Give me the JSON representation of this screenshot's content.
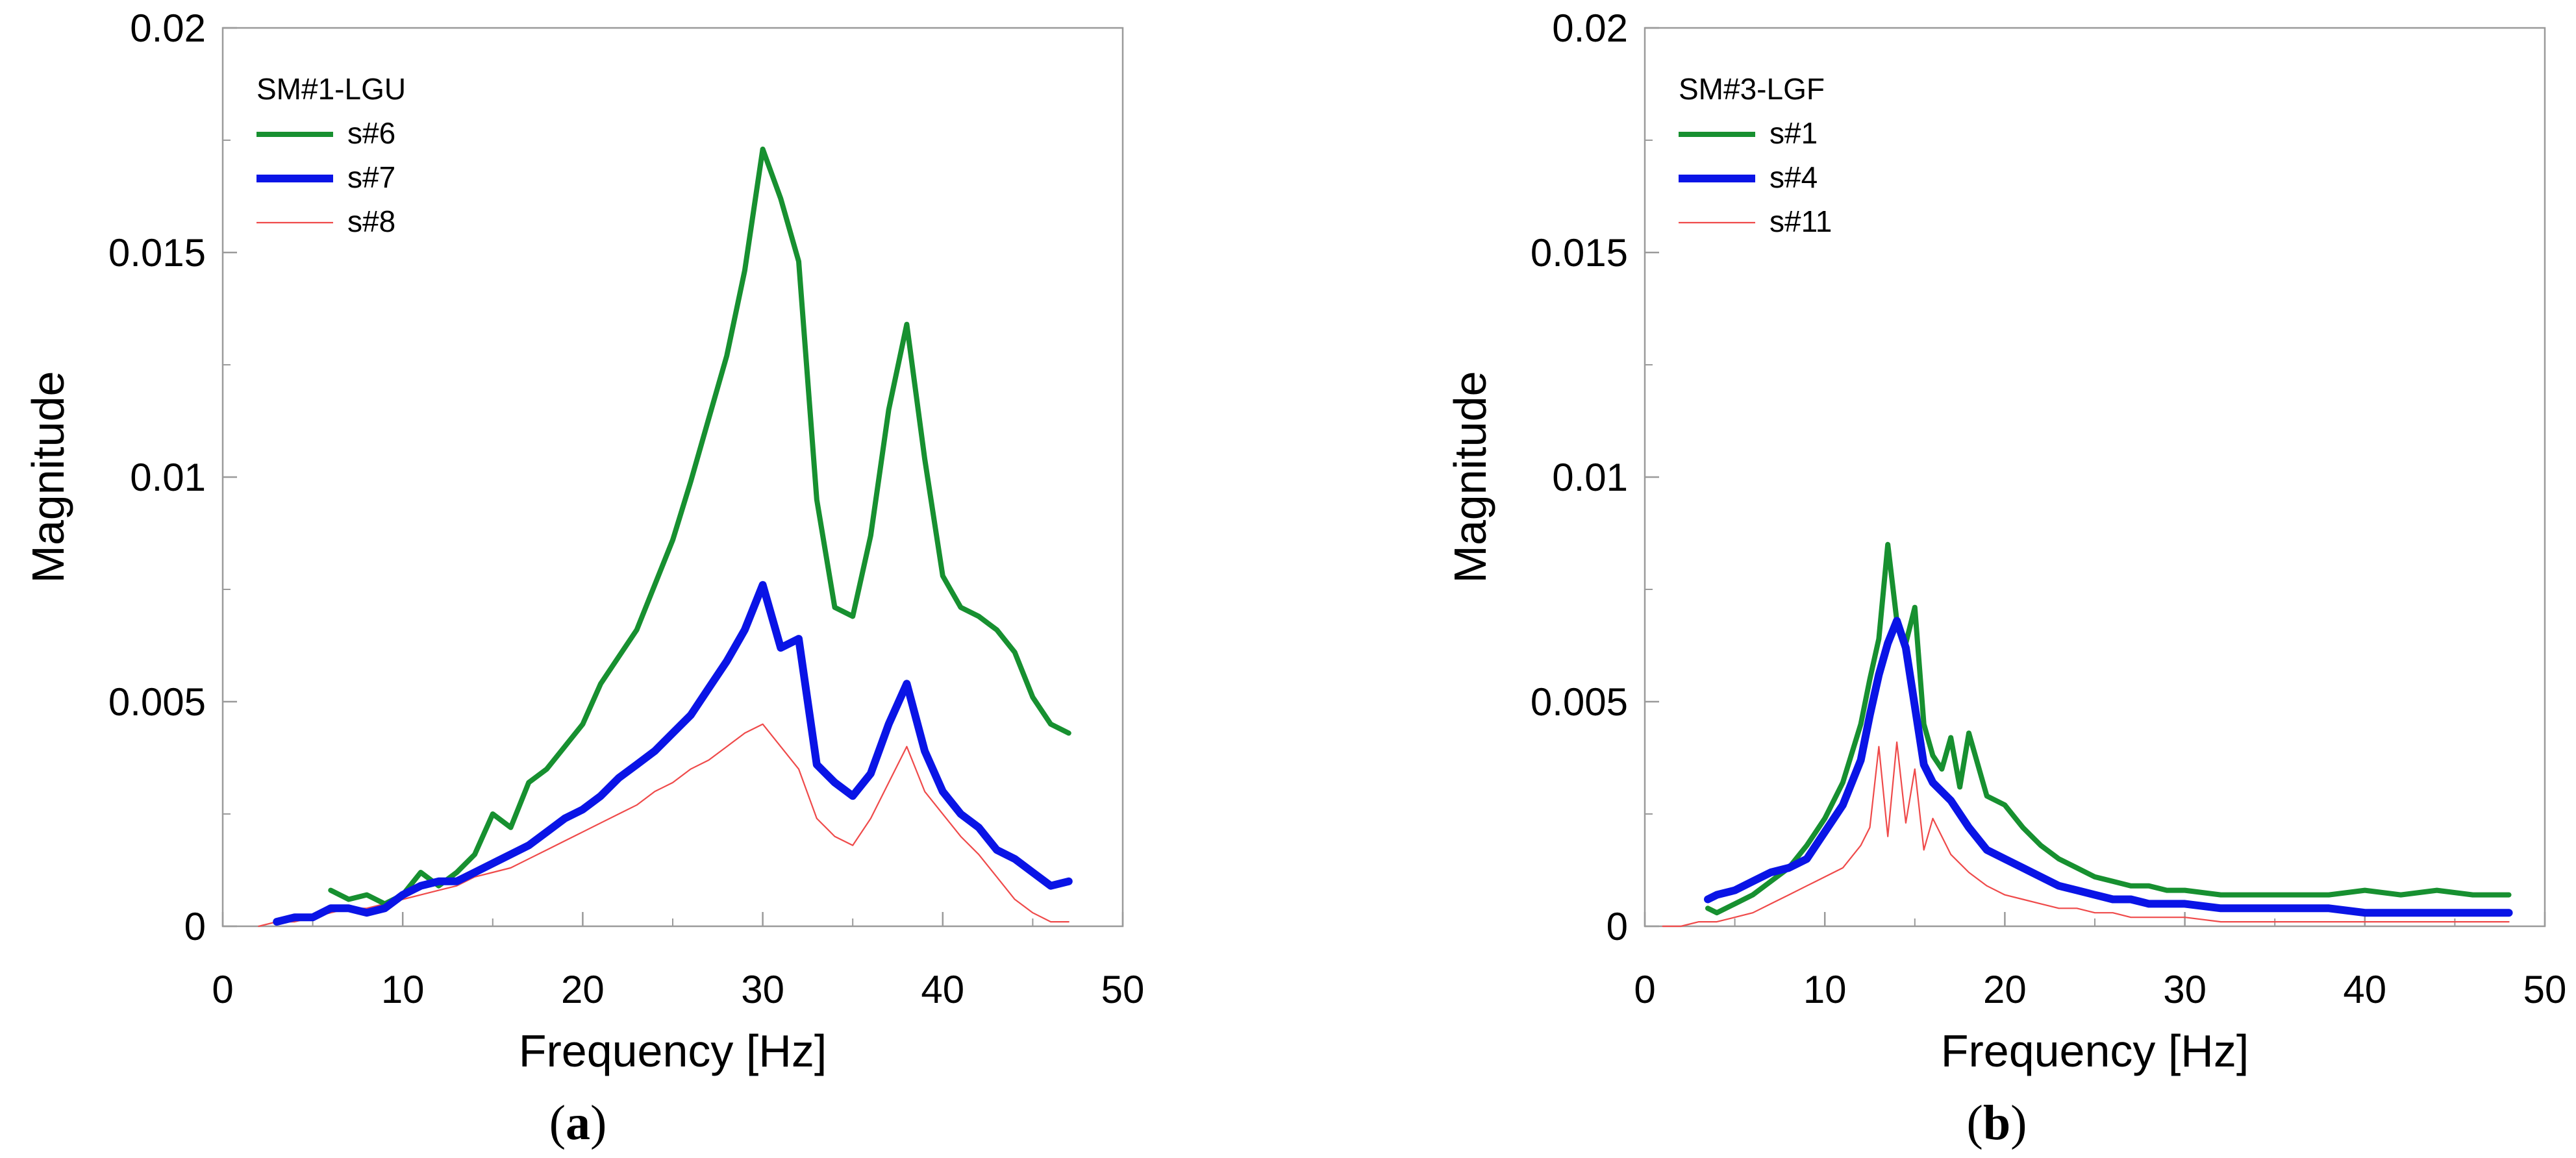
{
  "chart_data": [
    {
      "type": "line",
      "caption": "a",
      "legend_title": "SM#1-LGU",
      "xlabel": "Frequency  [Hz]",
      "ylabel": "Magnitude",
      "xlim": [
        0,
        50
      ],
      "ylim": [
        0,
        0.02
      ],
      "xticks": [
        "0",
        "10",
        "20",
        "30",
        "40",
        "50"
      ],
      "yticks": [
        "0",
        "0.005",
        "0.01",
        "0.015",
        "0.02"
      ],
      "legend_position": "top-left",
      "series": [
        {
          "name": "s#6",
          "color": "#179030",
          "style": "medium",
          "x": [
            6,
            7,
            8,
            9,
            10,
            11,
            12,
            13,
            14,
            15,
            16,
            17,
            18,
            19,
            20,
            21,
            22,
            23,
            24,
            25,
            26,
            27,
            28,
            29,
            30,
            31,
            32,
            33,
            34,
            35,
            36,
            37,
            38,
            39,
            40,
            41,
            42,
            43,
            44,
            45,
            46,
            47
          ],
          "y": [
            0.0008,
            0.0006,
            0.0007,
            0.0005,
            0.0007,
            0.0012,
            0.0009,
            0.0012,
            0.0016,
            0.0025,
            0.0022,
            0.0032,
            0.0035,
            0.004,
            0.0045,
            0.0054,
            0.006,
            0.0066,
            0.0076,
            0.0086,
            0.0099,
            0.0113,
            0.0127,
            0.0146,
            0.0173,
            0.0162,
            0.0148,
            0.0095,
            0.0071,
            0.0069,
            0.0087,
            0.0115,
            0.0134,
            0.0104,
            0.0078,
            0.0071,
            0.0069,
            0.0066,
            0.0061,
            0.0051,
            0.0045,
            0.0043
          ]
        },
        {
          "name": "s#7",
          "color": "#0a14e6",
          "style": "thick",
          "x": [
            3,
            4,
            5,
            6,
            7,
            8,
            9,
            10,
            11,
            12,
            13,
            14,
            15,
            16,
            17,
            18,
            19,
            20,
            21,
            22,
            23,
            24,
            25,
            26,
            27,
            28,
            29,
            30,
            31,
            32,
            33,
            34,
            35,
            36,
            37,
            38,
            39,
            40,
            41,
            42,
            43,
            44,
            45,
            46,
            47
          ],
          "y": [
            0.0001,
            0.0002,
            0.0002,
            0.0004,
            0.0004,
            0.0003,
            0.0004,
            0.0007,
            0.0009,
            0.001,
            0.001,
            0.0012,
            0.0014,
            0.0016,
            0.0018,
            0.0021,
            0.0024,
            0.0026,
            0.0029,
            0.0033,
            0.0036,
            0.0039,
            0.0043,
            0.0047,
            0.0053,
            0.0059,
            0.0066,
            0.0076,
            0.0062,
            0.0064,
            0.0036,
            0.0032,
            0.0029,
            0.0034,
            0.0045,
            0.0054,
            0.0039,
            0.003,
            0.0025,
            0.0022,
            0.0017,
            0.0015,
            0.0012,
            0.0009,
            0.001
          ]
        },
        {
          "name": "s#8",
          "color": "#ef4a4a",
          "style": "thin",
          "x": [
            2,
            3,
            4,
            5,
            6,
            7,
            8,
            9,
            10,
            11,
            12,
            13,
            14,
            15,
            16,
            17,
            18,
            19,
            20,
            21,
            22,
            23,
            24,
            25,
            26,
            27,
            28,
            29,
            30,
            31,
            32,
            33,
            34,
            35,
            36,
            37,
            38,
            39,
            40,
            41,
            42,
            43,
            44,
            45,
            46,
            47
          ],
          "y": [
            0.0,
            0.0001,
            0.0001,
            0.0002,
            0.0003,
            0.0004,
            0.0004,
            0.0005,
            0.0006,
            0.0007,
            0.0008,
            0.0009,
            0.0011,
            0.0012,
            0.0013,
            0.0015,
            0.0017,
            0.0019,
            0.0021,
            0.0023,
            0.0025,
            0.0027,
            0.003,
            0.0032,
            0.0035,
            0.0037,
            0.004,
            0.0043,
            0.0045,
            0.004,
            0.0035,
            0.0024,
            0.002,
            0.0018,
            0.0024,
            0.0032,
            0.004,
            0.003,
            0.0025,
            0.002,
            0.0016,
            0.0011,
            0.0006,
            0.0003,
            0.0001,
            0.0001
          ]
        }
      ]
    },
    {
      "type": "line",
      "caption": "b",
      "legend_title": "SM#3-LGF",
      "xlabel": "Frequency  [Hz]",
      "ylabel": "Magnitude",
      "xlim": [
        0,
        50
      ],
      "ylim": [
        0,
        0.02
      ],
      "xticks": [
        "0",
        "10",
        "20",
        "30",
        "40",
        "50"
      ],
      "yticks": [
        "0",
        "0.005",
        "0.01",
        "0.015",
        "0.02"
      ],
      "legend_position": "top-left",
      "series": [
        {
          "name": "s#1",
          "color": "#179030",
          "style": "medium",
          "x": [
            3.5,
            4,
            5,
            6,
            7,
            8,
            9,
            10,
            11,
            12,
            12.5,
            13,
            13.5,
            14,
            14.5,
            15,
            15.5,
            16,
            16.5,
            17,
            17.5,
            18,
            19,
            20,
            21,
            22,
            23,
            24,
            25,
            26,
            27,
            28,
            29,
            30,
            32,
            34,
            36,
            38,
            40,
            42,
            44,
            46,
            48
          ],
          "y": [
            0.0004,
            0.0003,
            0.0005,
            0.0007,
            0.001,
            0.0013,
            0.0018,
            0.0024,
            0.0032,
            0.0045,
            0.0055,
            0.0064,
            0.0085,
            0.0068,
            0.0063,
            0.0071,
            0.0045,
            0.0038,
            0.0035,
            0.0042,
            0.0031,
            0.0043,
            0.0029,
            0.0027,
            0.0022,
            0.0018,
            0.0015,
            0.0013,
            0.0011,
            0.001,
            0.0009,
            0.0009,
            0.0008,
            0.0008,
            0.0007,
            0.0007,
            0.0007,
            0.0007,
            0.0008,
            0.0007,
            0.0008,
            0.0007,
            0.0007
          ]
        },
        {
          "name": "s#4",
          "color": "#0a14e6",
          "style": "thick",
          "x": [
            3.5,
            4,
            5,
            6,
            7,
            8,
            9,
            10,
            11,
            12,
            12.5,
            13,
            13.5,
            14,
            14.5,
            15,
            15.5,
            16,
            17,
            18,
            19,
            20,
            21,
            22,
            23,
            24,
            25,
            26,
            27,
            28,
            30,
            32,
            34,
            36,
            38,
            40,
            42,
            44,
            46,
            48
          ],
          "y": [
            0.0006,
            0.0007,
            0.0008,
            0.001,
            0.0012,
            0.0013,
            0.0015,
            0.0021,
            0.0027,
            0.0037,
            0.0047,
            0.0056,
            0.0063,
            0.0068,
            0.0062,
            0.0049,
            0.0036,
            0.0032,
            0.0028,
            0.0022,
            0.0017,
            0.0015,
            0.0013,
            0.0011,
            0.0009,
            0.0008,
            0.0007,
            0.0006,
            0.0006,
            0.0005,
            0.0005,
            0.0004,
            0.0004,
            0.0004,
            0.0004,
            0.0003,
            0.0003,
            0.0003,
            0.0003,
            0.0003
          ]
        },
        {
          "name": "s#11",
          "color": "#ef4a4a",
          "style": "thin",
          "x": [
            1,
            2,
            3,
            4,
            5,
            6,
            7,
            8,
            9,
            10,
            11,
            12,
            12.5,
            13,
            13.5,
            14,
            14.5,
            15,
            15.5,
            16,
            17,
            18,
            19,
            20,
            21,
            22,
            23,
            24,
            25,
            26,
            27,
            28,
            30,
            32,
            35,
            38,
            42,
            45,
            48
          ],
          "y": [
            0.0,
            0.0,
            0.0001,
            0.0001,
            0.0002,
            0.0003,
            0.0005,
            0.0007,
            0.0009,
            0.0011,
            0.0013,
            0.0018,
            0.0022,
            0.004,
            0.002,
            0.0041,
            0.0023,
            0.0035,
            0.0017,
            0.0024,
            0.0016,
            0.0012,
            0.0009,
            0.0007,
            0.0006,
            0.0005,
            0.0004,
            0.0004,
            0.0003,
            0.0003,
            0.0002,
            0.0002,
            0.0002,
            0.0001,
            0.0001,
            0.0001,
            0.0001,
            0.0001,
            0.0001
          ]
        }
      ]
    }
  ]
}
